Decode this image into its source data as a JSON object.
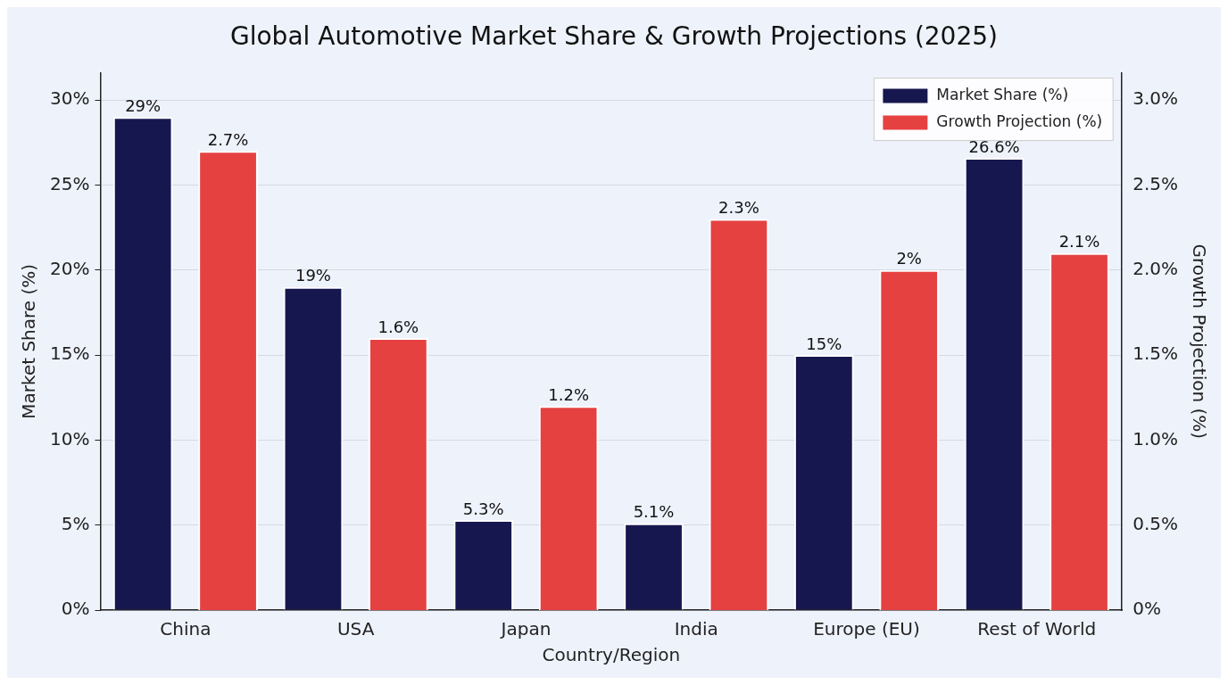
{
  "chart_data": {
    "type": "bar",
    "title": "Global Automotive Market Share & Growth Projections (2025)",
    "xlabel": "Country/Region",
    "ylabel": "Market Share (%)",
    "y2label": "Growth Projection (%)",
    "categories": [
      "China",
      "USA",
      "Japan",
      "India",
      "Europe (EU)",
      "Rest of World"
    ],
    "series": [
      {
        "name": "Market Share (%)",
        "color": "#17174f",
        "values": [
          29,
          19,
          5.3,
          5.1,
          15,
          26.6
        ],
        "value_labels": [
          "29%",
          "19%",
          "5.3%",
          "5.1%",
          "15%",
          "26.6%"
        ]
      },
      {
        "name": "Growth Projection (%)",
        "color": "#e64141",
        "axis": "y2",
        "values": [
          2.7,
          1.6,
          1.2,
          2.3,
          2,
          2.1
        ],
        "value_labels": [
          "2.7%",
          "1.6%",
          "1.2%",
          "2.3%",
          "2%",
          "2.1%"
        ]
      }
    ],
    "ylim": [
      0,
      31.6
    ],
    "yticks": [
      {
        "value": 0,
        "label": "0%"
      },
      {
        "value": 5,
        "label": "5%"
      },
      {
        "value": 10,
        "label": "10%"
      },
      {
        "value": 15,
        "label": "15%"
      },
      {
        "value": 20,
        "label": "20%"
      },
      {
        "value": 25,
        "label": "25%"
      },
      {
        "value": 30,
        "label": "30%"
      }
    ],
    "y2lim": [
      0,
      3.16
    ],
    "y2ticks": [
      {
        "value": 0,
        "label": "0%"
      },
      {
        "value": 0.5,
        "label": "0.5%"
      },
      {
        "value": 1,
        "label": "1.0%"
      },
      {
        "value": 1.5,
        "label": "1.5%"
      },
      {
        "value": 2,
        "label": "2.0%"
      },
      {
        "value": 2.5,
        "label": "2.5%"
      },
      {
        "value": 3,
        "label": "3.0%"
      }
    ],
    "grid": "y",
    "legend": "top right"
  }
}
